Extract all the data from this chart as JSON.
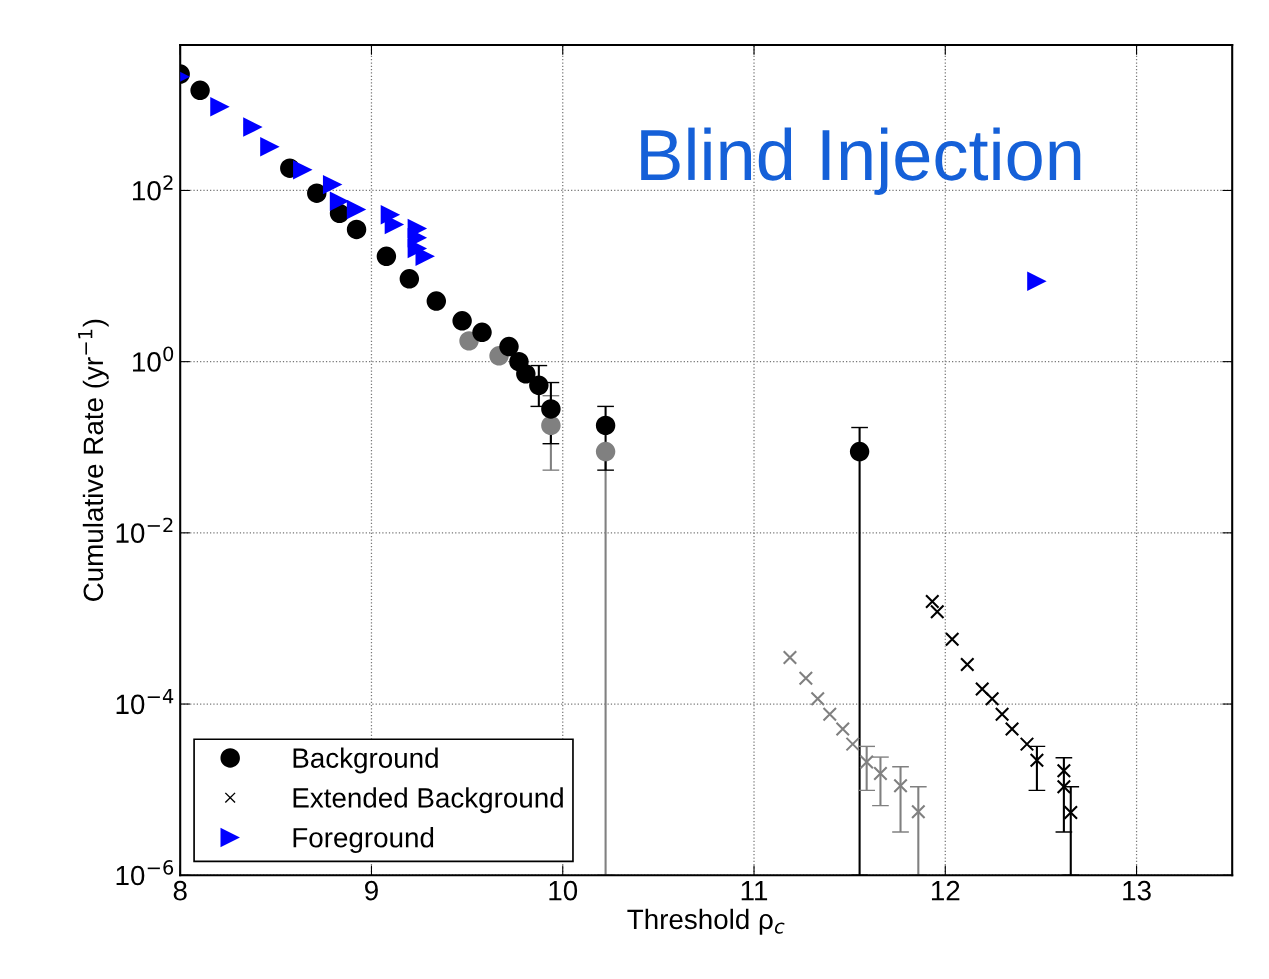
{
  "chart_data": {
    "type": "scatter",
    "title": "Blind Injection",
    "xlabel": "Threshold ρ$_{c}$",
    "ylabel": "Cumulative Rate (yr$^{−1}$)",
    "log": "y",
    "grid": true,
    "legend": "bottom left",
    "line_style": "dotted",
    "xlim": [
      8,
      13.5
    ],
    "xticks": [
      8,
      9,
      10,
      11,
      12,
      13
    ],
    "ylim": [
      1e-06,
      5000
    ],
    "yticks": [
      {
        "value": 1e-06,
        "label": "10$^{−6}$"
      },
      {
        "value": 0.0001,
        "label": "10$^{−4}$"
      },
      {
        "value": 0.01,
        "label": "10$^{−2}$"
      },
      {
        "value": 1,
        "label": "10$^{0}$"
      },
      {
        "value": 100,
        "label": "10$^{2}$"
      }
    ],
    "series": [
      {
        "color": "#808080",
        "marker": "circle",
        "x": [
          9.51,
          9.667,
          9.771,
          9.849,
          9.938,
          10.224
        ],
        "values": [
          1.75,
          1.17,
          null,
          null,
          0.18,
          0.089
        ],
        "errors": [
          null,
          null,
          null,
          null,
          [
            0.054,
            0.4
          ],
          [
            1e-06,
            0.089
          ]
        ]
      },
      {
        "name": "Background",
        "color": "#000000",
        "marker": "circle",
        "x": [
          8.0,
          8.104,
          8.208,
          8.339,
          8.453,
          8.573,
          8.714,
          8.833,
          8.922,
          9.078,
          9.198,
          9.339,
          9.474,
          9.578,
          9.719,
          9.771,
          9.807,
          9.875,
          9.938,
          10.224,
          11.552
        ],
        "values": [
          2290,
          1480,
          null,
          null,
          null,
          182,
          93,
          54,
          35,
          17,
          9.3,
          5.1,
          3.0,
          2.2,
          1.5,
          1.0,
          0.72,
          0.53,
          0.28,
          0.18,
          0.089
        ],
        "errors": [
          null,
          null,
          null,
          null,
          null,
          null,
          null,
          null,
          null,
          null,
          null,
          null,
          null,
          null,
          null,
          null,
          null,
          [
            0.3,
            0.9
          ],
          [
            0.11,
            0.57
          ],
          [
            0.054,
            0.3
          ],
          [
            1e-06,
            0.17
          ]
        ]
      },
      {
        "color": "#808080",
        "marker": "cross",
        "x": [
          11.188,
          11.271,
          11.333,
          11.396,
          11.464,
          11.516,
          11.589,
          11.661,
          11.766,
          11.859
        ],
        "values": [
          0.00035,
          0.0002,
          0.000115,
          7.6e-05,
          5.1e-05,
          3.4e-05,
          2.1e-05,
          1.54e-05,
          1.11e-05,
          5.5e-06
        ],
        "errors": [
          null,
          null,
          null,
          null,
          null,
          null,
          [
            9.8e-06,
            3.2e-05
          ],
          [
            6.5e-06,
            2.4e-05
          ],
          [
            3.2e-06,
            1.85e-05
          ],
          [
            1e-06,
            1.08e-05
          ]
        ]
      },
      {
        "name": "Extended Background",
        "color": "#000000",
        "marker": "cross",
        "x": [
          11.932,
          11.958,
          12.036,
          12.115,
          12.193,
          12.245,
          12.297,
          12.349,
          12.427,
          12.479,
          12.62,
          12.62,
          12.656
        ],
        "values": [
          0.00158,
          0.0012,
          0.00057,
          0.00029,
          0.00015,
          0.000115,
          7.6e-05,
          5.1e-05,
          3.4e-05,
          2.2e-05,
          1.66e-05,
          1.08e-05,
          5.4e-06
        ],
        "errors": [
          null,
          null,
          null,
          null,
          null,
          null,
          null,
          null,
          null,
          [
            9.8e-06,
            3.2e-05
          ],
          [
            3.2e-06,
            2.36e-05
          ],
          null,
          [
            1e-06,
            1.08e-05
          ]
        ]
      },
      {
        "name": "Foreground",
        "color": "#0000ff",
        "marker": "triangle",
        "x": [
          8.0,
          8.208,
          8.38,
          8.469,
          8.641,
          8.797,
          8.833,
          8.922,
          9.099,
          9.12,
          9.24,
          9.24,
          9.24,
          9.281,
          12.479
        ],
        "values": [
          2130,
          950,
          550,
          324,
          174,
          117,
          75,
          60,
          52,
          40,
          36,
          28,
          21,
          17,
          8.7
        ]
      }
    ]
  }
}
